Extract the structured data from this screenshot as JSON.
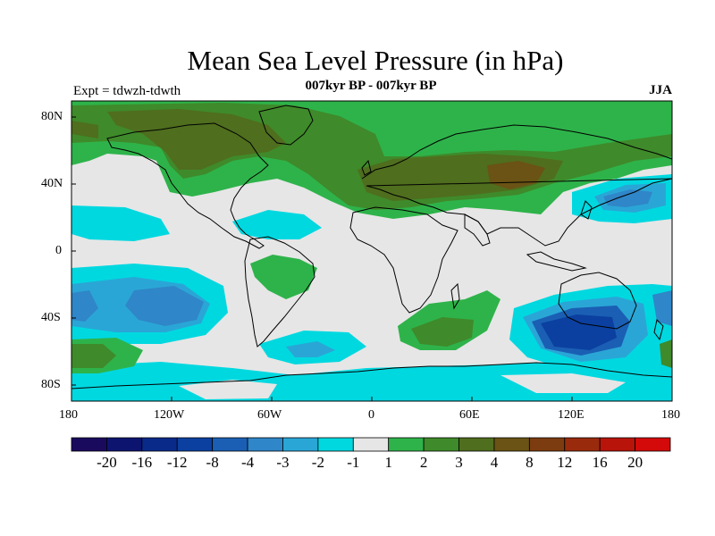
{
  "title": "Mean Sea Level Pressure (in hPa)",
  "subtitle": "007kyr BP - 007kyr BP",
  "experiment": "Expt = tdwzh-tdwth",
  "season": "JJA",
  "y_axis_labels": [
    "80N",
    "40N",
    "0",
    "40S",
    "80S"
  ],
  "x_axis_labels": [
    "180",
    "120W",
    "60W",
    "0",
    "60E",
    "120E",
    "180"
  ],
  "colorbar": {
    "labels": [
      "-20",
      "-16",
      "-12",
      "-8",
      "-4",
      "-3",
      "-2",
      "-1",
      "1",
      "2",
      "3",
      "4",
      "8",
      "12",
      "16",
      "20"
    ],
    "colors": [
      "#1a0a5e",
      "#0d1470",
      "#0a2a8a",
      "#0b40a0",
      "#1a5fb4",
      "#2f86c8",
      "#2aa6d6",
      "#00d8e0",
      "#e6e6e6",
      "#2eb34a",
      "#3f8a2a",
      "#4f6e1e",
      "#6a5314",
      "#7d3c10",
      "#9a2a0c",
      "#b8140a",
      "#d40a0a"
    ]
  },
  "colors": {
    "land_outline": "#000000",
    "neutral": "#e6e6e6"
  }
}
